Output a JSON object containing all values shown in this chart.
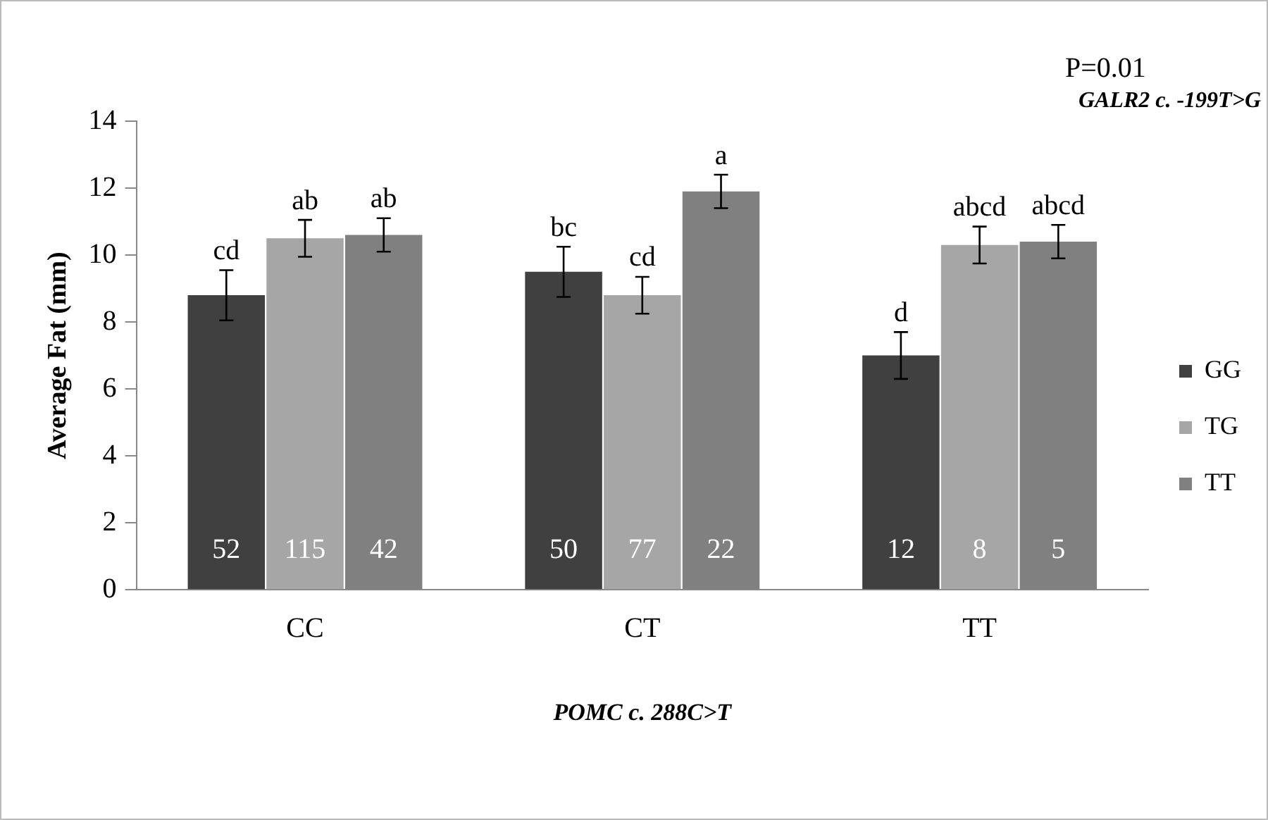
{
  "chart_data": {
    "type": "bar",
    "xlabel": "POMC c. 288C>T",
    "ylabel": "Average Fat (mm)",
    "legend_title": "GALR2 c. -199T>G",
    "categories": [
      "CC",
      "CT",
      "TT"
    ],
    "series": [
      {
        "name": "GG",
        "color": "#404040",
        "values": [
          8.8,
          9.5,
          7.0
        ],
        "errors": [
          0.75,
          0.75,
          0.7
        ],
        "value_labels": [
          "cd",
          "bc",
          "d"
        ]
      },
      {
        "name": "TG",
        "color": "#a6a6a6",
        "values": [
          10.5,
          8.8,
          10.3
        ],
        "errors": [
          0.55,
          0.55,
          0.55
        ],
        "value_labels": [
          "ab",
          "cd",
          "abcd"
        ]
      },
      {
        "name": "TT",
        "color": "#808080",
        "values": [
          10.6,
          11.9,
          10.4
        ],
        "errors": [
          0.5,
          0.5,
          0.5
        ],
        "value_labels": [
          "ab",
          "a",
          "abcd"
        ]
      }
    ],
    "ylim": [
      0,
      14
    ],
    "yticks": [
      0,
      2,
      4,
      6,
      8,
      10,
      12,
      14
    ],
    "grid": false,
    "legend": "right",
    "annotations": [
      "52",
      "115",
      "42",
      "50",
      "77",
      "22",
      "12",
      "8",
      "5",
      "P=0.01"
    ]
  }
}
